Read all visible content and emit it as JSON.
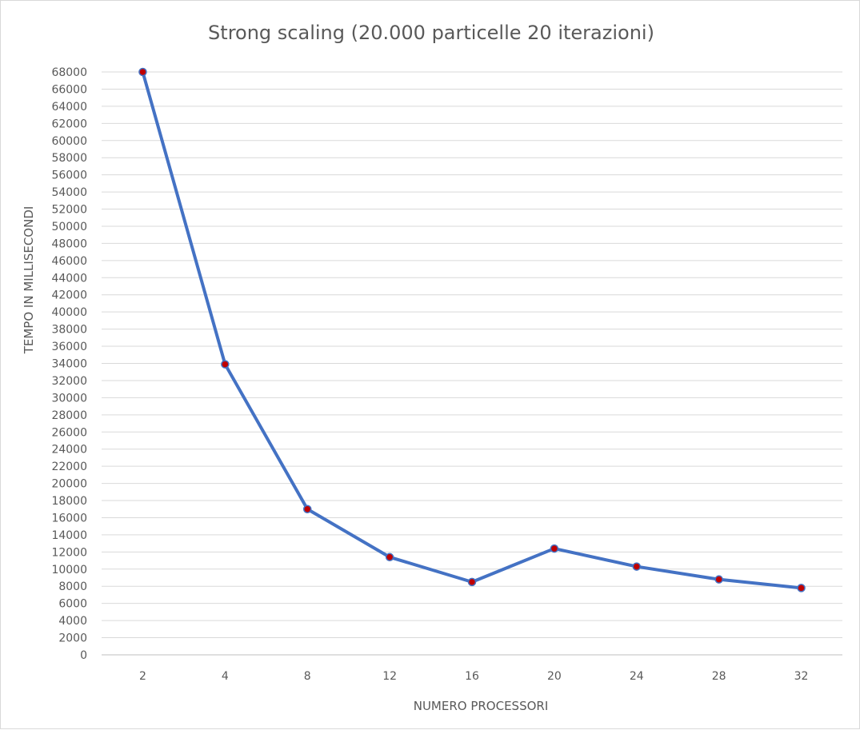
{
  "chart_data": {
    "type": "line",
    "title": "Strong scaling (20.000 particelle 20 iterazioni)",
    "xlabel": "NUMERO PROCESSORI",
    "ylabel": "TEMPO IN MILLISECONDI",
    "categories": [
      "2",
      "4",
      "8",
      "12",
      "16",
      "20",
      "24",
      "28",
      "32"
    ],
    "series": [
      {
        "values": [
          68000,
          33900,
          17000,
          11400,
          8500,
          12400,
          10300,
          8800,
          7800
        ],
        "line_color": "#4472C4",
        "marker_fill": "#C00000",
        "marker_stroke": "#4472C4"
      }
    ],
    "ylim": [
      0,
      68000
    ],
    "ytick_step": 2000,
    "grid": true,
    "legend": "none"
  }
}
